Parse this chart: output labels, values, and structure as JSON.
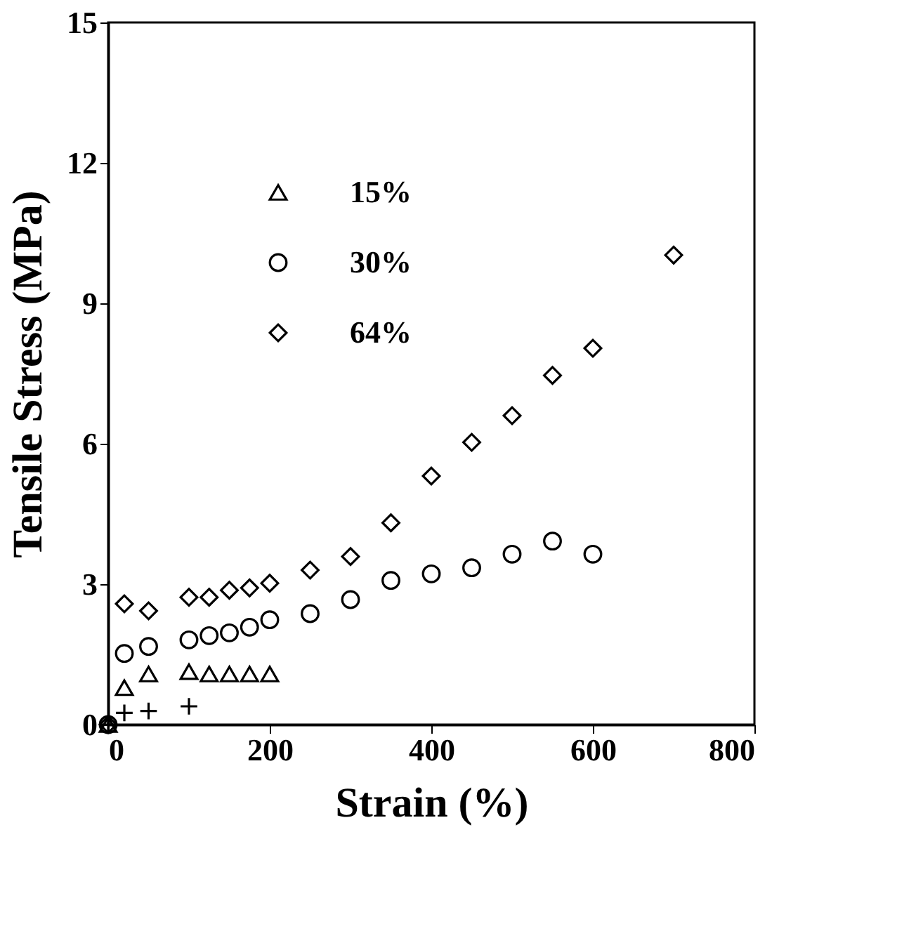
{
  "chart_data": {
    "type": "scatter",
    "xlabel": "Strain (%)",
    "ylabel": "Tensile Stress (MPa)",
    "xlim": [
      0,
      800
    ],
    "xticks": [
      0,
      200,
      400,
      600,
      800
    ],
    "ylim": [
      0,
      15
    ],
    "yticks": [
      0,
      3,
      6,
      9,
      12,
      15
    ],
    "grid": false,
    "legend": "top left",
    "series": [
      {
        "color": "#000000",
        "marker": "cross",
        "x": [
          20,
          50,
          100,
          0
        ],
        "values": [
          0.25,
          0.29,
          0.39,
          0
        ]
      },
      {
        "name": "15%",
        "color": "#000000",
        "marker": "triangle",
        "x": [
          20,
          50,
          100,
          125,
          150,
          175,
          200,
          0
        ],
        "values": [
          0.79,
          1.08,
          1.13,
          1.08,
          1.08,
          1.08,
          1.08,
          0
        ]
      },
      {
        "name": "30%",
        "color": "#000000",
        "marker": "circle",
        "x": [
          20,
          50,
          100,
          125,
          150,
          175,
          200,
          250,
          300,
          350,
          400,
          450,
          500,
          550,
          600,
          0
        ],
        "values": [
          1.52,
          1.67,
          1.81,
          1.9,
          1.96,
          2.08,
          2.24,
          2.37,
          2.67,
          3.08,
          3.22,
          3.35,
          3.64,
          3.92,
          3.64,
          0
        ]
      },
      {
        "name": "64%",
        "color": "#000000",
        "marker": "diamond",
        "x": [
          20,
          50,
          100,
          125,
          150,
          175,
          200,
          250,
          300,
          350,
          400,
          450,
          500,
          550,
          600,
          700,
          0
        ],
        "values": [
          2.58,
          2.43,
          2.72,
          2.72,
          2.87,
          2.92,
          3.02,
          3.3,
          3.59,
          4.31,
          5.31,
          6.03,
          6.6,
          7.46,
          8.04,
          10.03,
          0
        ]
      }
    ]
  }
}
